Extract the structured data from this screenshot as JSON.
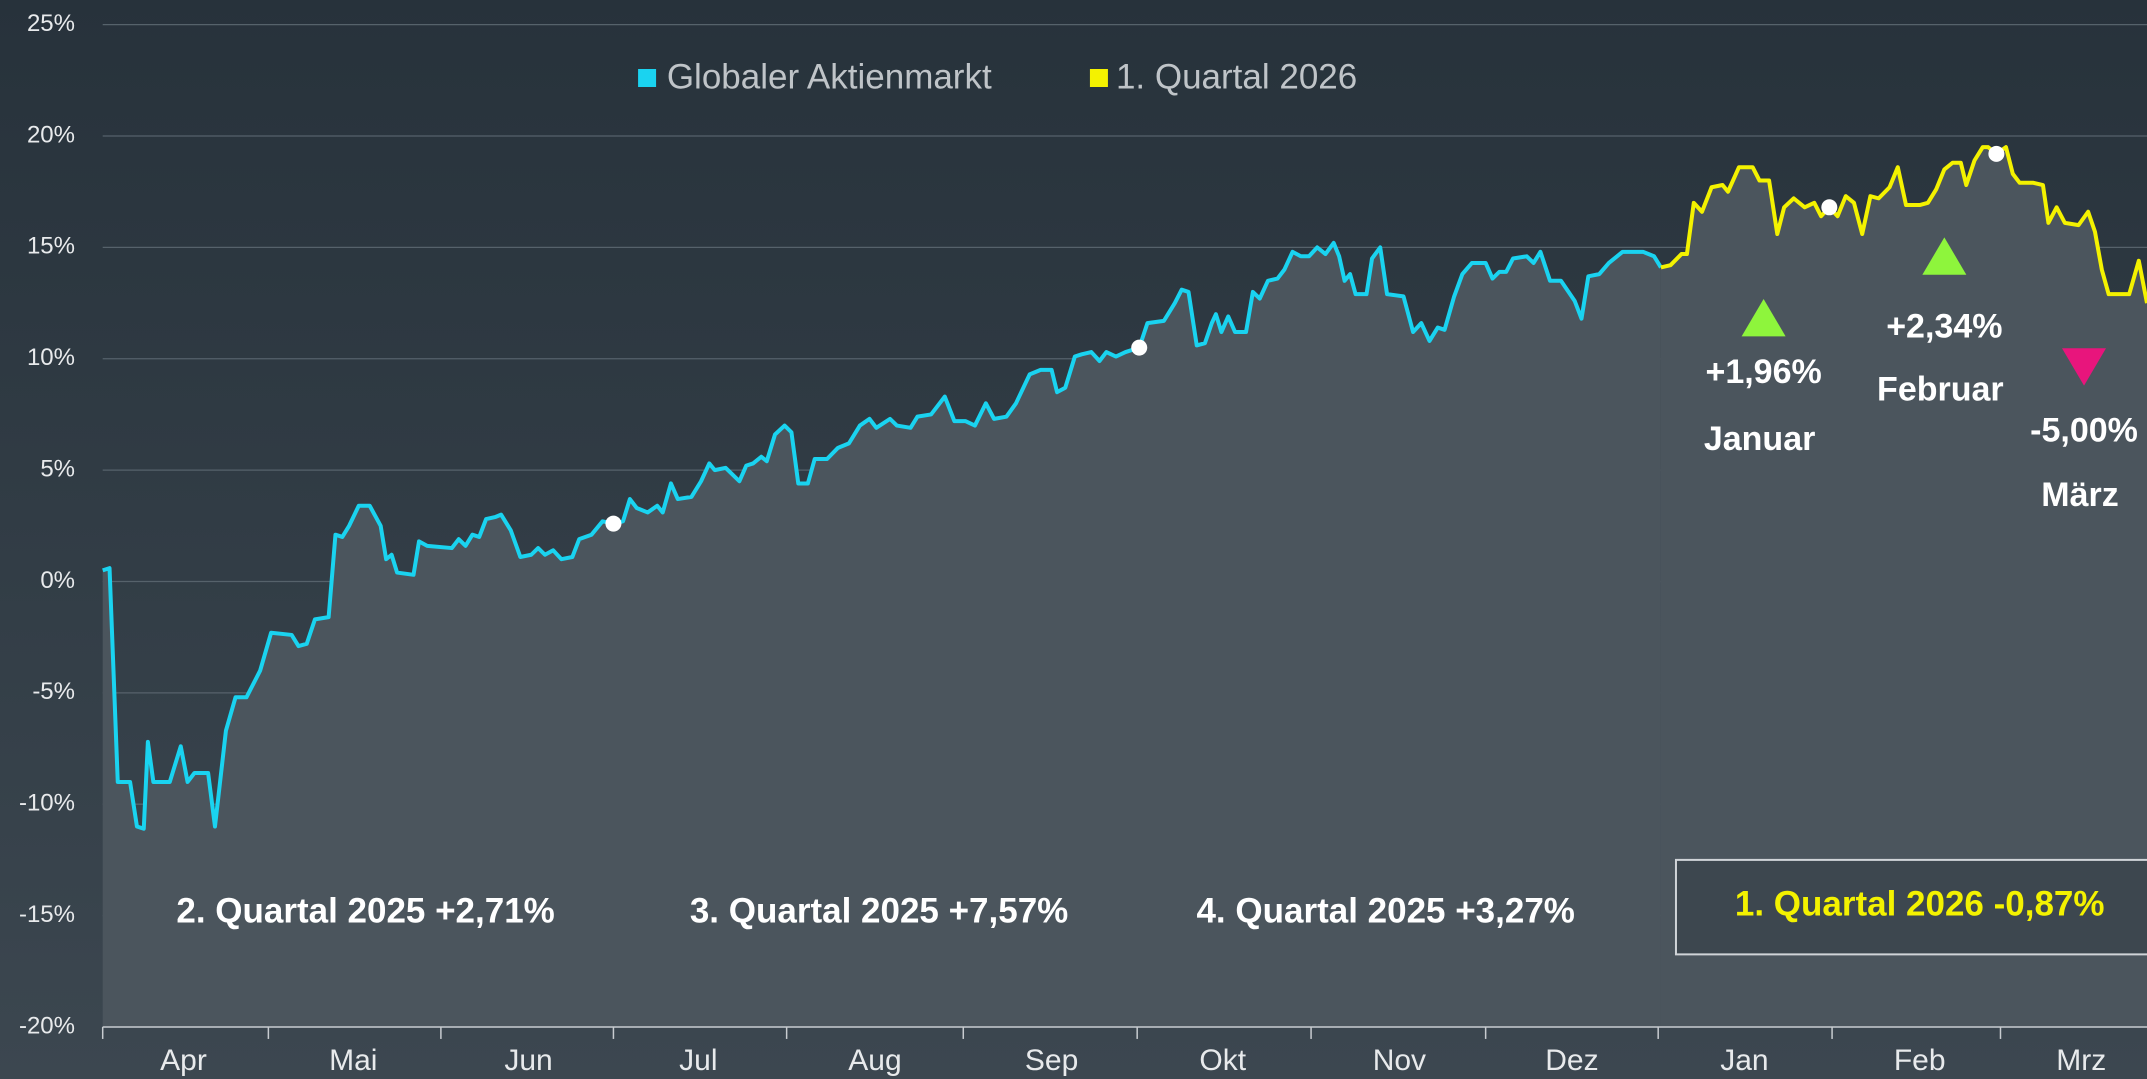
{
  "chart_data": {
    "type": "line",
    "legend": "top",
    "xlim": [
      0,
      1493
    ],
    "ylim": [
      -20,
      25
    ],
    "xticks": [
      {
        "value": 59,
        "label": "Apr"
      },
      {
        "value": 183,
        "label": "Mai"
      },
      {
        "value": 311,
        "label": "Jun"
      },
      {
        "value": 435,
        "label": "Jul"
      },
      {
        "value": 564,
        "label": "Aug"
      },
      {
        "value": 693,
        "label": "Sep"
      },
      {
        "value": 818,
        "label": "Okt"
      },
      {
        "value": 947,
        "label": "Nov"
      },
      {
        "value": 1073,
        "label": "Dez"
      },
      {
        "value": 1199,
        "label": "Jan"
      },
      {
        "value": 1327,
        "label": "Feb"
      },
      {
        "value": 1445,
        "label": "Mrz"
      }
    ],
    "yticks": [
      {
        "value": 25,
        "label": "25%"
      },
      {
        "value": 20,
        "label": "20%"
      },
      {
        "value": 15,
        "label": "15%"
      },
      {
        "value": 10,
        "label": "10%"
      },
      {
        "value": 5,
        "label": "5%"
      },
      {
        "value": 0,
        "label": "0%"
      },
      {
        "value": -5,
        "label": "-5%"
      },
      {
        "value": -10,
        "label": "-10%"
      },
      {
        "value": -15,
        "label": "-15%"
      },
      {
        "value": -20,
        "label": "-20%"
      }
    ],
    "grid": true,
    "series": [
      {
        "name": "Globaler Aktienmarkt",
        "color": "#1ad3f0",
        "x": [
          0,
          5,
          11,
          20,
          25,
          30,
          33,
          37,
          49,
          57,
          62,
          67,
          77,
          82,
          90,
          97,
          105,
          115,
          123,
          138,
          143,
          149,
          155,
          165,
          170,
          175,
          180,
          187,
          195,
          203,
          207,
          211,
          215,
          227,
          231,
          237,
          255,
          260,
          265,
          270,
          275,
          280,
          287,
          291,
          298,
          305,
          313,
          318,
          323,
          329,
          335,
          343,
          348,
          357,
          365,
          373,
          380,
          385,
          390,
          398,
          405,
          409,
          415,
          420,
          430,
          437,
          443,
          447,
          455,
          465,
          470,
          475,
          481,
          485,
          491,
          498,
          503,
          508,
          515,
          520,
          529,
          537,
          545,
          553,
          560,
          565,
          575,
          580,
          590,
          595,
          605,
          615,
          622,
          630,
          637,
          645,
          651,
          660,
          667,
          677,
          685,
          693,
          697,
          703,
          710,
          715,
          722,
          728,
          733,
          740,
          747,
          757,
          763,
          775,
          783,
          788,
          793,
          799,
          805,
          810,
          813,
          817,
          822,
          827,
          835,
          840,
          845,
          851,
          858,
          863,
          869,
          875,
          881,
          887,
          893,
          899,
          903,
          907,
          911,
          915,
          923,
          927,
          933,
          938,
          950,
          957,
          963,
          969,
          975,
          980,
          987,
          993,
          1000,
          1010,
          1015,
          1020,
          1025,
          1030,
          1040,
          1045,
          1050,
          1057,
          1065,
          1075,
          1080,
          1085,
          1093,
          1100,
          1110,
          1125,
          1133,
          1138
        ],
        "values": [
          0.5,
          0.6,
          -9,
          -9,
          -11,
          -11.1,
          -7.2,
          -9,
          -9,
          -7.4,
          -9,
          -8.6,
          -8.6,
          -11,
          -6.7,
          -5.2,
          -5.2,
          -4,
          -2.3,
          -2.4,
          -2.9,
          -2.8,
          -1.7,
          -1.6,
          2.1,
          2,
          2.5,
          3.4,
          3.4,
          2.5,
          1,
          1.2,
          0.4,
          0.3,
          1.8,
          1.6,
          1.5,
          1.9,
          1.6,
          2.1,
          2,
          2.8,
          2.9,
          3,
          2.3,
          1.1,
          1.2,
          1.5,
          1.2,
          1.4,
          1,
          1.1,
          1.9,
          2.1,
          2.7,
          2.6,
          2.7,
          3.7,
          3.3,
          3.1,
          3.4,
          3.1,
          4.4,
          3.7,
          3.8,
          4.5,
          5.3,
          5,
          5.1,
          4.5,
          5.2,
          5.3,
          5.6,
          5.4,
          6.6,
          7,
          6.7,
          4.4,
          4.4,
          5.5,
          5.5,
          6,
          6.2,
          7,
          7.3,
          6.9,
          7.3,
          7,
          6.9,
          7.4,
          7.5,
          8.3,
          7.2,
          7.2,
          7,
          8,
          7.3,
          7.4,
          8,
          9.3,
          9.5,
          9.5,
          8.5,
          8.7,
          10.1,
          10.2,
          10.3,
          9.9,
          10.3,
          10.1,
          10.3,
          10.5,
          11.6,
          11.7,
          12.5,
          13.1,
          13,
          10.6,
          10.7,
          11.6,
          12,
          11.2,
          11.9,
          11.2,
          11.2,
          13,
          12.7,
          13.5,
          13.6,
          14,
          14.8,
          14.6,
          14.6,
          15,
          14.7,
          15.2,
          14.6,
          13.5,
          13.8,
          12.9,
          12.9,
          14.5,
          15,
          12.9,
          12.8,
          11.2,
          11.6,
          10.8,
          11.4,
          11.3,
          12.8,
          13.8,
          14.3,
          14.3,
          13.6,
          13.9,
          13.9,
          14.5,
          14.6,
          14.3,
          14.8,
          13.5,
          13.5,
          12.6,
          11.8,
          13.7,
          13.8,
          14.3,
          14.8,
          14.8,
          14.6,
          14.1
        ]
      },
      {
        "name": "1. Quartal 2026",
        "color": "#f4f200",
        "x": [
          1138,
          1145,
          1153,
          1157,
          1162,
          1168,
          1175,
          1183,
          1187,
          1195,
          1205,
          1210,
          1217,
          1223,
          1228,
          1235,
          1243,
          1250,
          1255,
          1261,
          1267,
          1273,
          1279,
          1285,
          1291,
          1297,
          1305,
          1311,
          1317,
          1327,
          1333,
          1339,
          1345,
          1351,
          1357,
          1361,
          1367,
          1373,
          1377,
          1383,
          1390,
          1395,
          1400,
          1410,
          1417,
          1421,
          1427,
          1433,
          1443,
          1450,
          1455,
          1460,
          1465,
          1480,
          1487,
          1493
        ],
        "values": [
          14.1,
          14.2,
          14.7,
          14.7,
          17,
          16.6,
          17.7,
          17.8,
          17.5,
          18.6,
          18.6,
          18,
          18,
          15.6,
          16.8,
          17.2,
          16.8,
          17,
          16.4,
          16.8,
          16.4,
          17.3,
          17,
          15.6,
          17.3,
          17.2,
          17.7,
          18.6,
          16.9,
          16.9,
          17,
          17.6,
          18.5,
          18.8,
          18.8,
          17.8,
          18.9,
          19.5,
          19.5,
          19.2,
          19.5,
          18.3,
          17.9,
          17.9,
          17.8,
          16.1,
          16.8,
          16.1,
          16,
          16.6,
          15.7,
          14,
          12.9,
          12.9,
          14.4,
          12.5
        ]
      }
    ],
    "quarter_labels": [
      "2. Quartal 2025 +2,71%",
      "3. Quartal 2025 +7,57%",
      "4. Quartal 2025 +3,27%",
      "1. Quartal 2026 -0,87%"
    ],
    "month_annotations": [
      {
        "month": "Januar",
        "value": 1.96,
        "label": "+1,96%",
        "direction": "up",
        "color": "#8ef53c"
      },
      {
        "month": "Februar",
        "value": 2.34,
        "label": "+2,34%",
        "direction": "up",
        "color": "#8ef53c"
      },
      {
        "month": "März",
        "value": -5.0,
        "label": "-5,00%",
        "direction": "down",
        "color": "#e8157c"
      }
    ]
  }
}
